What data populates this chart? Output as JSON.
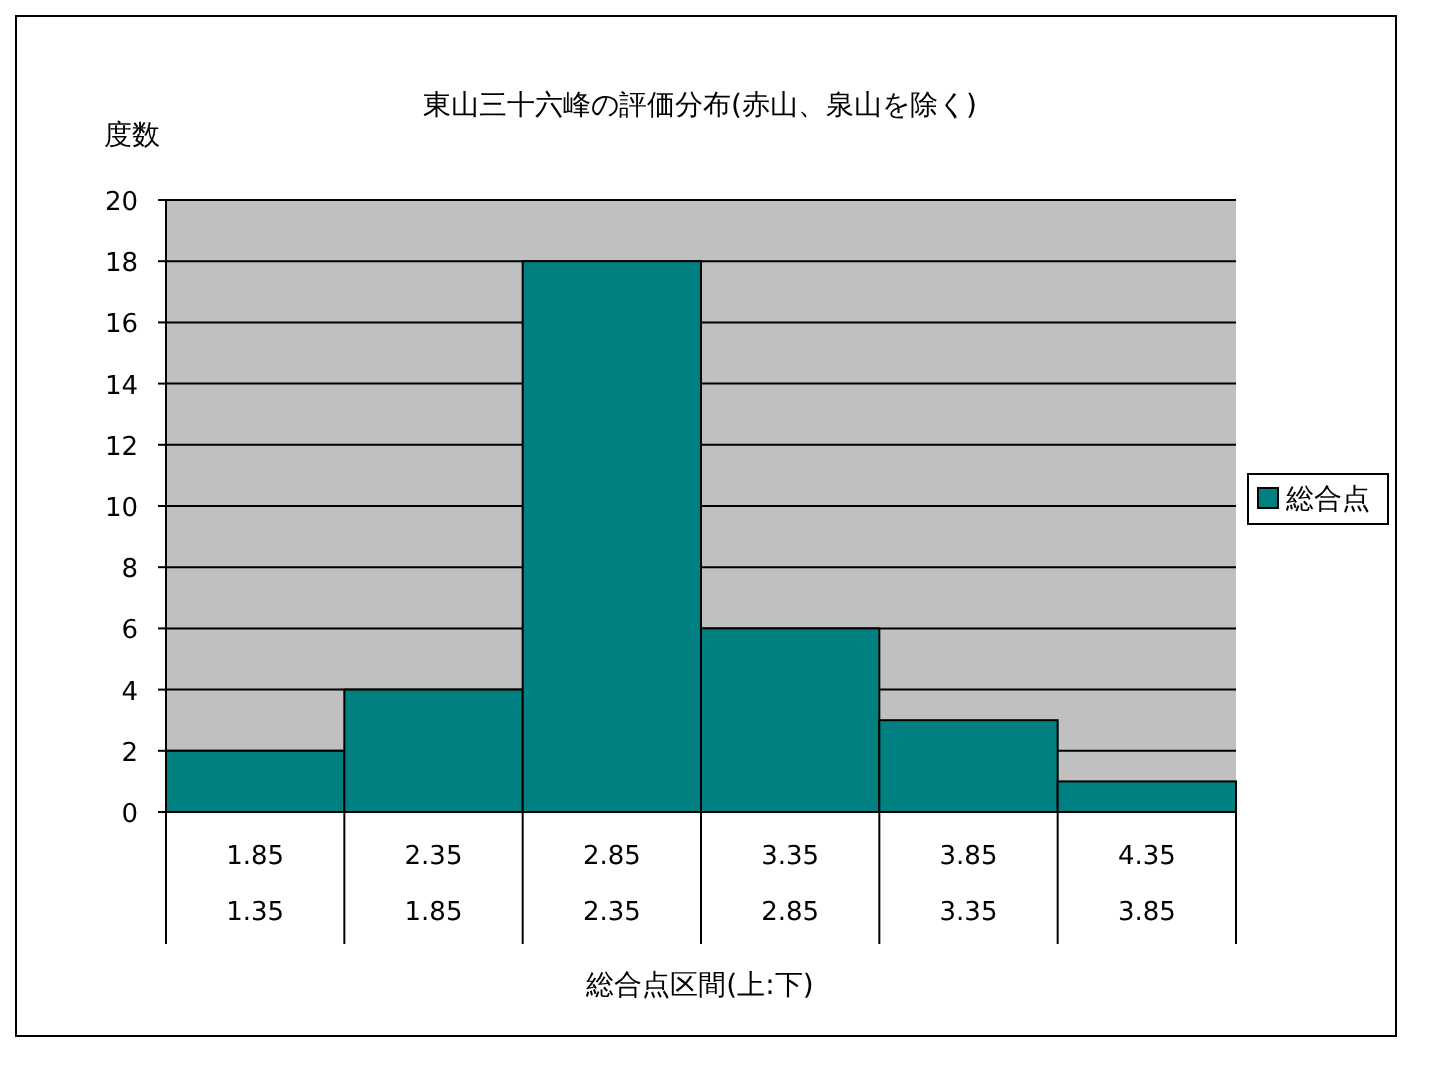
{
  "chart_data": {
    "type": "bar",
    "title": "東山三十六峰の評価分布(赤山、泉山を除く)",
    "ylabel": "度数",
    "xlabel": "総合点区間(上:下)",
    "categories": [
      "1.85\n1.35",
      "2.35\n1.85",
      "2.85\n2.35",
      "3.35\n2.85",
      "3.85\n3.35",
      "4.35\n3.85"
    ],
    "series": [
      {
        "name": "総合点",
        "color": "#008080",
        "values": [
          2,
          4,
          18,
          6,
          3,
          1
        ]
      }
    ],
    "ylim": [
      0,
      20
    ],
    "yticks": [
      0,
      2,
      4,
      6,
      8,
      10,
      12,
      14,
      16,
      18,
      20
    ],
    "grid": "y",
    "legend": "right"
  }
}
